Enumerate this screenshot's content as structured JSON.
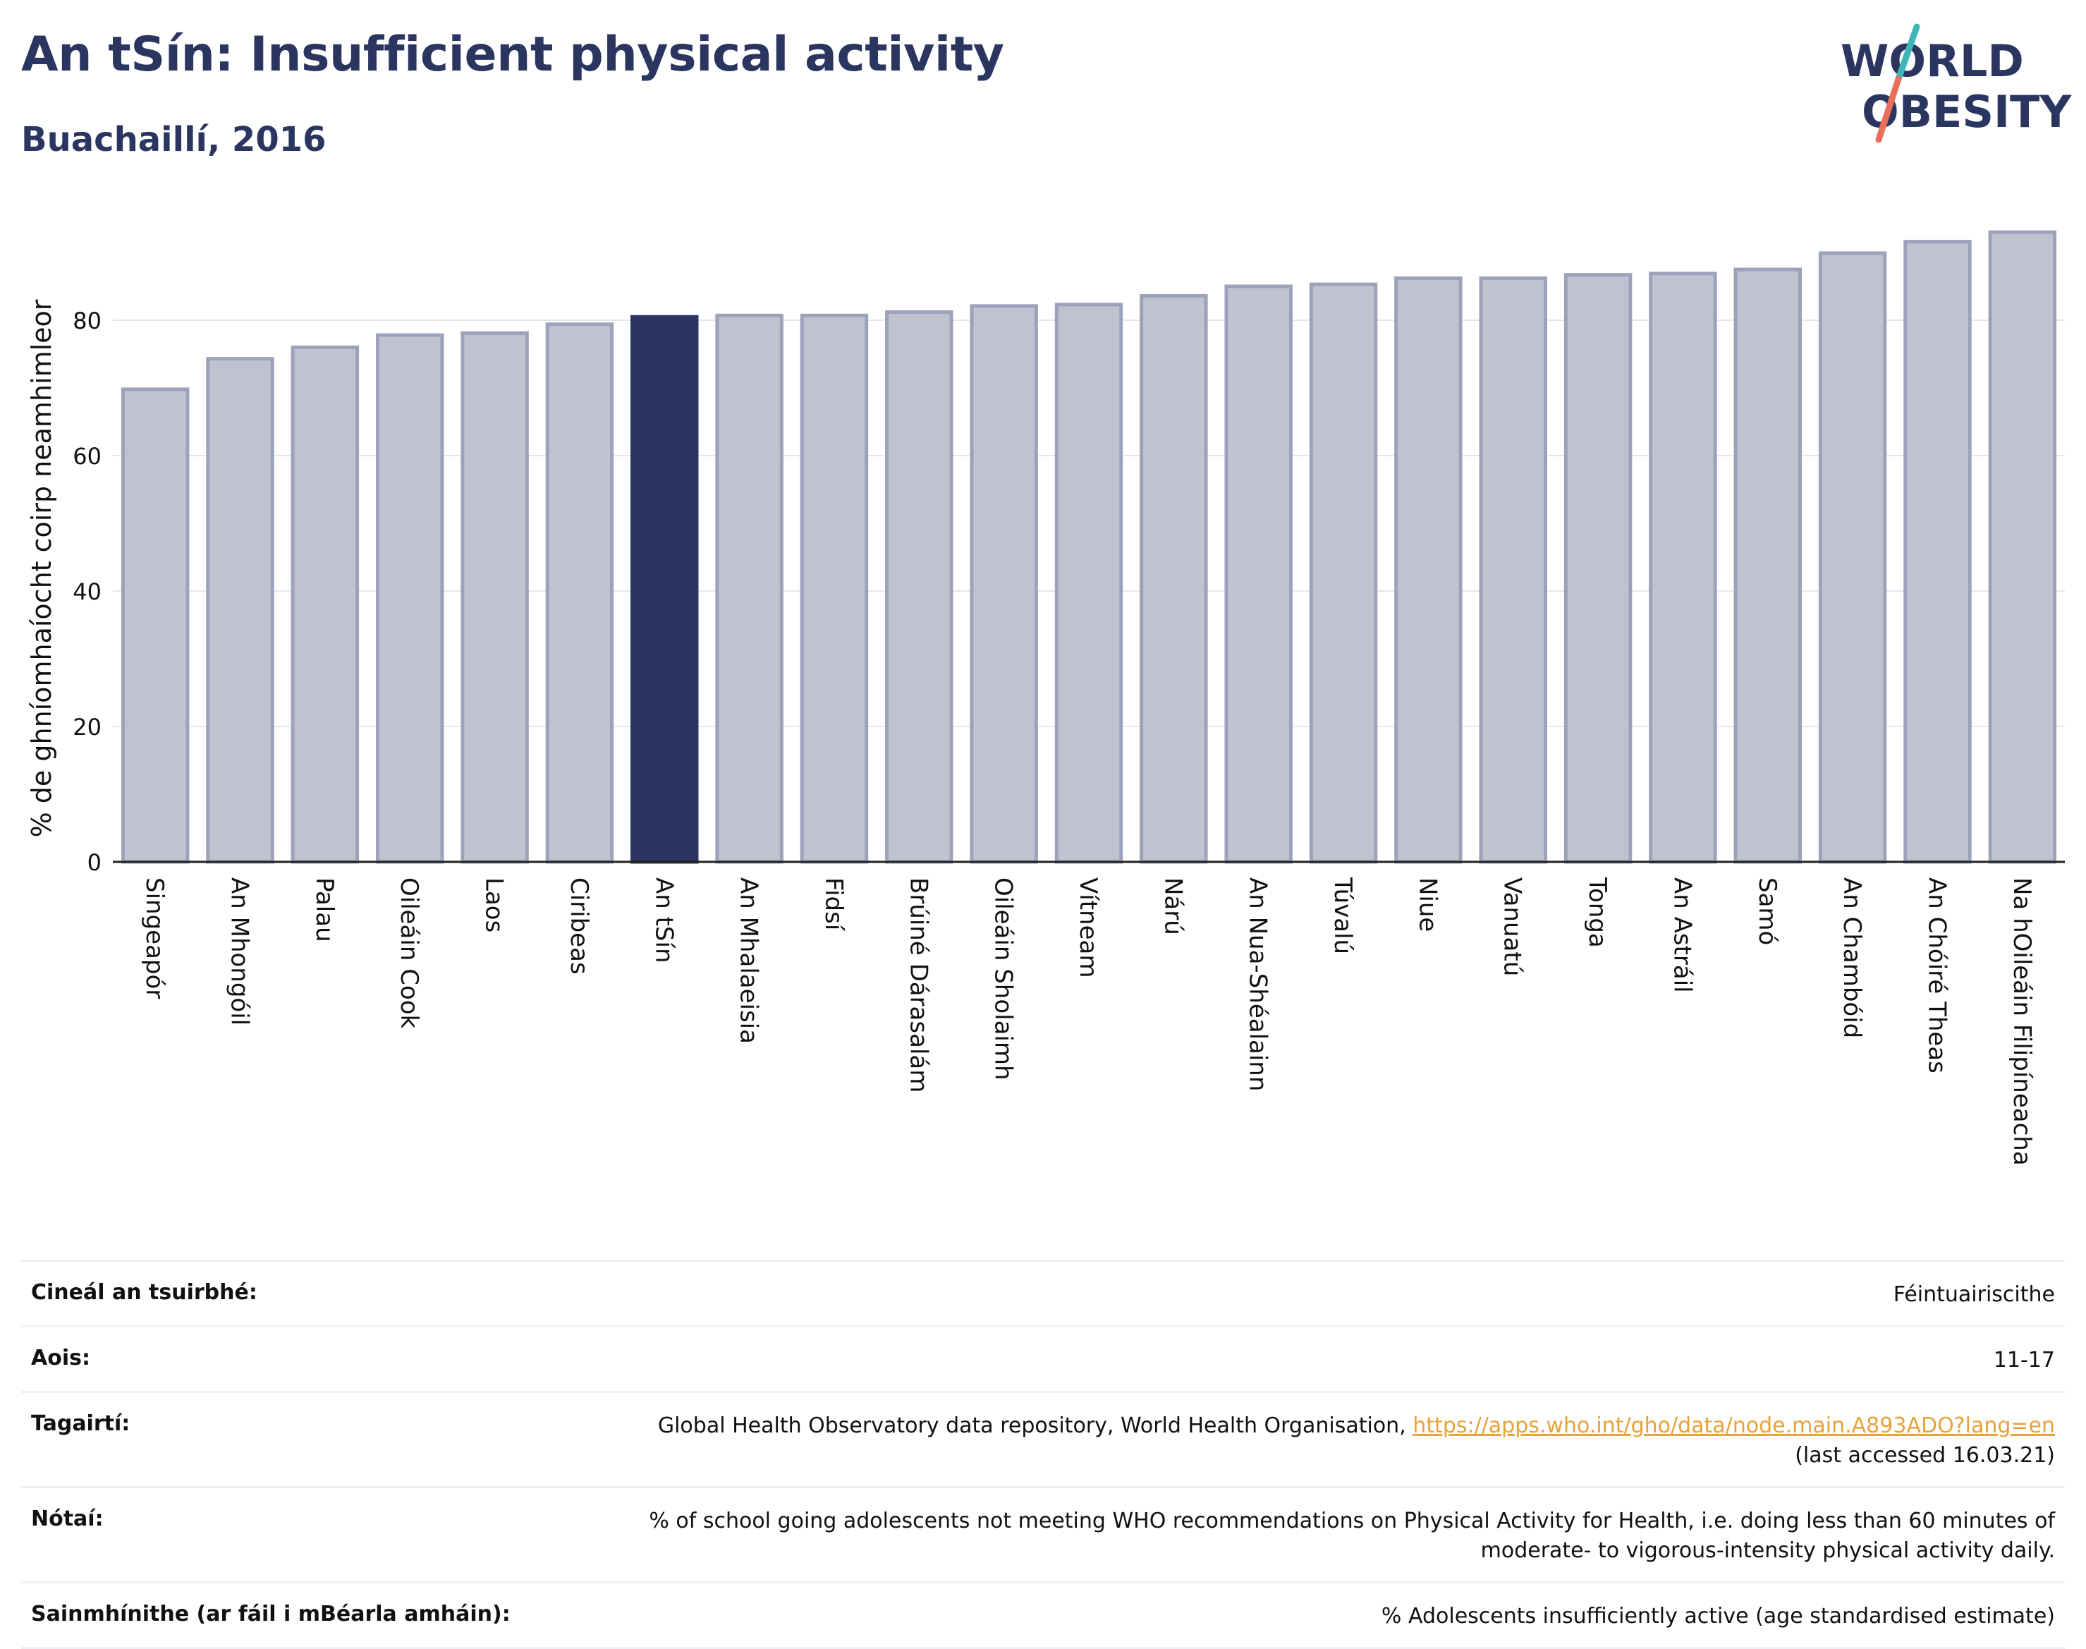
{
  "header": {
    "title": "An tSín: Insufficient physical activity",
    "subtitle": "Buachaillí, 2016",
    "logo_line1": "WORLD",
    "logo_line2": "OBESITY"
  },
  "colors": {
    "title": "#2a3560",
    "bar": "#c0c3cf",
    "bar_stroke": "#9da2bb",
    "bar_highlight": "#2a3560",
    "link": "#e7a23a",
    "logo_slash_top": "#3bb8b5",
    "logo_slash_bottom": "#e8705b"
  },
  "chart_data": {
    "type": "bar",
    "ylabel": "% de ghníomhaíocht coirp neamhimleor",
    "ylim": [
      0,
      95
    ],
    "yticks": [
      0,
      20,
      40,
      60,
      80
    ],
    "grid": true,
    "highlight": "An tSín",
    "categories": [
      "Singeapór",
      "An Mhongóil",
      "Palau",
      "Oileáin Cook",
      "Laos",
      "Ciribeas",
      "An tSín",
      "An Mhalaeisia",
      "Fidsí",
      "Brúiné Dárasalám",
      "Oileáin Sholaimh",
      "Vítneam",
      "Nárú",
      "An Nua-Shéalainn",
      "Túvalú",
      "Niue",
      "Vanuatú",
      "Tonga",
      "An Astráil",
      "Samó",
      "An Chambóid",
      "An Chóiré Theas",
      "Na hOileáin Filipíneacha"
    ],
    "values": [
      69.8,
      74.3,
      76.0,
      77.8,
      78.1,
      79.4,
      80.5,
      80.7,
      80.7,
      81.2,
      82.1,
      82.3,
      83.6,
      85.0,
      85.3,
      86.2,
      86.2,
      86.7,
      86.9,
      87.5,
      89.9,
      91.6,
      93.0
    ]
  },
  "info": {
    "survey_label": "Cineál an tsuirbhé:",
    "survey_value": "Féintuairiscithe",
    "age_label": "Aois:",
    "age_value": "11-17",
    "ref_label": "Tagairtí:",
    "ref_text": "Global Health Observatory data repository, World Health Organisation, ",
    "ref_link": "https://apps.who.int/gho/data/node.main.A893ADO?lang=en",
    "ref_accessed": "(last accessed 16.03.21)",
    "notes_label": "Nótaí:",
    "notes_line1": "% of school going adolescents not meeting WHO recommendations on Physical Activity for Health, i.e. doing less than 60 minutes of",
    "notes_line2": "moderate- to vigorous-intensity physical activity daily.",
    "def_label": "Sainmhínithe (ar fáil i mBéarla amháin):",
    "def_value": "% Adolescents insufficiently active (age standardised estimate)"
  }
}
